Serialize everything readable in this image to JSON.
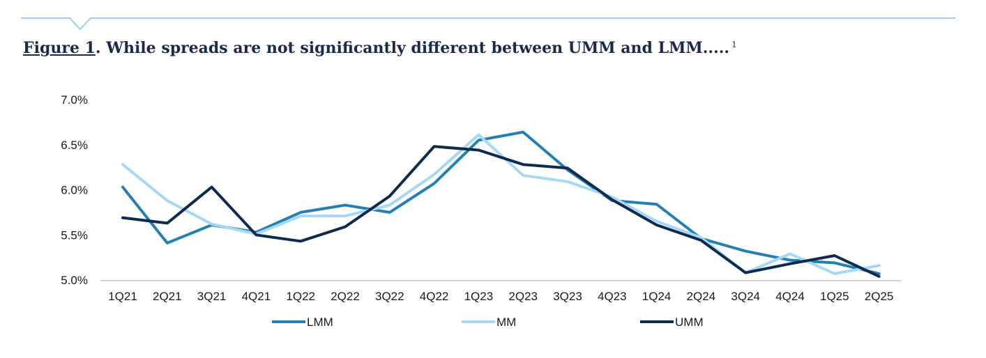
{
  "title": {
    "label": "Figure 1",
    "text": ". While spreads are not significantly different between UMM and LMM.....",
    "footnote": "1"
  },
  "colors": {
    "rule": "#9ecfea",
    "title": "#1b2a4a",
    "axis": "#9aa7b3"
  },
  "chart_data": {
    "type": "line",
    "categories": [
      "1Q21",
      "2Q21",
      "3Q21",
      "4Q21",
      "1Q22",
      "2Q22",
      "3Q22",
      "4Q22",
      "1Q23",
      "2Q23",
      "3Q23",
      "4Q23",
      "1Q24",
      "2Q24",
      "3Q24",
      "4Q24",
      "1Q25",
      "2Q25"
    ],
    "y_ticks": [
      "7.0%",
      "6.5%",
      "6.0%",
      "5.5%",
      "5.0%"
    ],
    "ylim": [
      5.0,
      7.0
    ],
    "grid": false,
    "legend_position": "bottom",
    "series": [
      {
        "name": "LMM",
        "color": "#2480b2",
        "values": [
          6.03,
          5.41,
          5.61,
          5.53,
          5.75,
          5.83,
          5.75,
          6.07,
          6.55,
          6.64,
          6.22,
          5.88,
          5.84,
          5.46,
          5.32,
          5.22,
          5.19,
          5.07
        ]
      },
      {
        "name": "MM",
        "color": "#a6d8f5",
        "values": [
          6.28,
          5.88,
          5.62,
          5.51,
          5.71,
          5.71,
          5.83,
          6.17,
          6.61,
          6.16,
          6.09,
          5.92,
          5.65,
          5.47,
          5.08,
          5.29,
          5.07,
          5.16
        ]
      },
      {
        "name": "UMM",
        "color": "#0f2a4f",
        "values": [
          5.69,
          5.63,
          6.03,
          5.5,
          5.43,
          5.59,
          5.93,
          6.48,
          6.44,
          6.28,
          6.24,
          5.89,
          5.61,
          5.44,
          5.08,
          5.18,
          5.27,
          5.04
        ]
      }
    ]
  }
}
